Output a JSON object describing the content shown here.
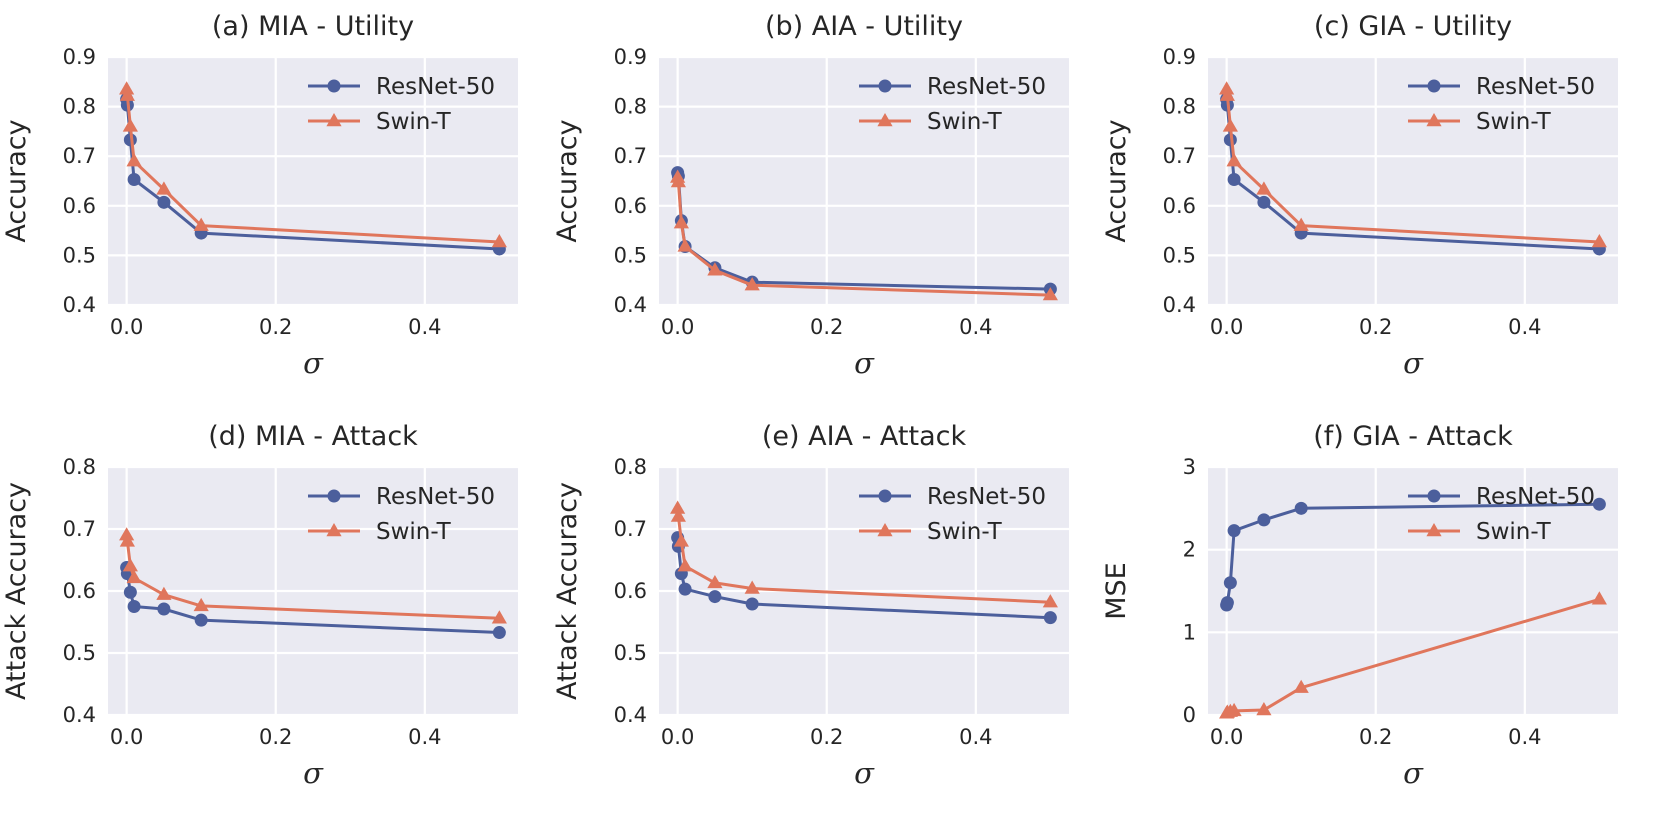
{
  "colors": {
    "resnet": "#4c5f9c",
    "swin": "#e0765c",
    "background": "#eaeaf2",
    "grid": "#ffffff"
  },
  "chart_data": [
    {
      "type": "line",
      "title": "(a) MIA - Utility",
      "xlabel": "σ",
      "ylabel": "Accuracy",
      "xlim": [
        -0.025,
        0.525
      ],
      "ylim": [
        0.4,
        0.9
      ],
      "xticks": [
        0.0,
        0.2,
        0.4
      ],
      "xtick_labels": [
        "0.0",
        "0.2",
        "0.4"
      ],
      "yticks": [
        0.4,
        0.5,
        0.6,
        0.7,
        0.8,
        0.9
      ],
      "ytick_labels": [
        "0.4",
        "0.5",
        "0.6",
        "0.7",
        "0.8",
        "0.9"
      ],
      "legend": "top-right",
      "series": [
        {
          "name": "ResNet-50",
          "marker": "circle",
          "color": "#4c5f9c",
          "x": [
            0.0,
            0.001,
            0.005,
            0.01,
            0.05,
            0.1,
            0.5
          ],
          "y": [
            0.815,
            0.803,
            0.733,
            0.653,
            0.607,
            0.545,
            0.513
          ]
        },
        {
          "name": "Swin-T",
          "marker": "triangle",
          "color": "#e0765c",
          "x": [
            0.0,
            0.001,
            0.005,
            0.01,
            0.05,
            0.1,
            0.5
          ],
          "y": [
            0.835,
            0.822,
            0.76,
            0.69,
            0.633,
            0.56,
            0.527
          ]
        }
      ]
    },
    {
      "type": "line",
      "title": "(b) AIA - Utility",
      "xlabel": "σ",
      "ylabel": "Accuracy",
      "xlim": [
        -0.025,
        0.525
      ],
      "ylim": [
        0.4,
        0.9
      ],
      "xticks": [
        0.0,
        0.2,
        0.4
      ],
      "xtick_labels": [
        "0.0",
        "0.2",
        "0.4"
      ],
      "yticks": [
        0.4,
        0.5,
        0.6,
        0.7,
        0.8,
        0.9
      ],
      "ytick_labels": [
        "0.4",
        "0.5",
        "0.6",
        "0.7",
        "0.8",
        "0.9"
      ],
      "legend": "top-right",
      "series": [
        {
          "name": "ResNet-50",
          "marker": "circle",
          "color": "#4c5f9c",
          "x": [
            0.0,
            0.001,
            0.005,
            0.01,
            0.05,
            0.1,
            0.5
          ],
          "y": [
            0.667,
            0.66,
            0.57,
            0.518,
            0.475,
            0.446,
            0.432
          ]
        },
        {
          "name": "Swin-T",
          "marker": "triangle",
          "color": "#e0765c",
          "x": [
            0.0,
            0.001,
            0.005,
            0.01,
            0.05,
            0.1,
            0.5
          ],
          "y": [
            0.657,
            0.648,
            0.565,
            0.518,
            0.47,
            0.44,
            0.42
          ]
        }
      ]
    },
    {
      "type": "line",
      "title": "(c) GIA - Utility",
      "xlabel": "σ",
      "ylabel": "Accuracy",
      "xlim": [
        -0.025,
        0.525
      ],
      "ylim": [
        0.4,
        0.9
      ],
      "xticks": [
        0.0,
        0.2,
        0.4
      ],
      "xtick_labels": [
        "0.0",
        "0.2",
        "0.4"
      ],
      "yticks": [
        0.4,
        0.5,
        0.6,
        0.7,
        0.8,
        0.9
      ],
      "ytick_labels": [
        "0.4",
        "0.5",
        "0.6",
        "0.7",
        "0.8",
        "0.9"
      ],
      "legend": "top-right",
      "series": [
        {
          "name": "ResNet-50",
          "marker": "circle",
          "color": "#4c5f9c",
          "x": [
            0.0,
            0.001,
            0.005,
            0.01,
            0.05,
            0.1,
            0.5
          ],
          "y": [
            0.815,
            0.803,
            0.733,
            0.653,
            0.607,
            0.545,
            0.513
          ]
        },
        {
          "name": "Swin-T",
          "marker": "triangle",
          "color": "#e0765c",
          "x": [
            0.0,
            0.001,
            0.005,
            0.01,
            0.05,
            0.1,
            0.5
          ],
          "y": [
            0.835,
            0.822,
            0.76,
            0.69,
            0.633,
            0.56,
            0.527
          ]
        }
      ]
    },
    {
      "type": "line",
      "title": "(d) MIA - Attack",
      "xlabel": "σ",
      "ylabel": "Attack Accuracy",
      "xlim": [
        -0.025,
        0.525
      ],
      "ylim": [
        0.4,
        0.8
      ],
      "xticks": [
        0.0,
        0.2,
        0.4
      ],
      "xtick_labels": [
        "0.0",
        "0.2",
        "0.4"
      ],
      "yticks": [
        0.4,
        0.5,
        0.6,
        0.7,
        0.8
      ],
      "ytick_labels": [
        "0.4",
        "0.5",
        "0.6",
        "0.7",
        "0.8"
      ],
      "legend": "top-right",
      "series": [
        {
          "name": "ResNet-50",
          "marker": "circle",
          "color": "#4c5f9c",
          "x": [
            0.0,
            0.001,
            0.005,
            0.01,
            0.05,
            0.1,
            0.5
          ],
          "y": [
            0.638,
            0.628,
            0.598,
            0.575,
            0.571,
            0.553,
            0.533
          ]
        },
        {
          "name": "Swin-T",
          "marker": "triangle",
          "color": "#e0765c",
          "x": [
            0.0,
            0.001,
            0.005,
            0.01,
            0.05,
            0.1,
            0.5
          ],
          "y": [
            0.69,
            0.68,
            0.64,
            0.621,
            0.594,
            0.576,
            0.556
          ]
        }
      ]
    },
    {
      "type": "line",
      "title": "(e) AIA - Attack",
      "xlabel": "σ",
      "ylabel": "Attack Accuracy",
      "xlim": [
        -0.025,
        0.525
      ],
      "ylim": [
        0.4,
        0.8
      ],
      "xticks": [
        0.0,
        0.2,
        0.4
      ],
      "xtick_labels": [
        "0.0",
        "0.2",
        "0.4"
      ],
      "yticks": [
        0.4,
        0.5,
        0.6,
        0.7,
        0.8
      ],
      "ytick_labels": [
        "0.4",
        "0.5",
        "0.6",
        "0.7",
        "0.8"
      ],
      "legend": "top-right",
      "series": [
        {
          "name": "ResNet-50",
          "marker": "circle",
          "color": "#4c5f9c",
          "x": [
            0.0,
            0.001,
            0.005,
            0.01,
            0.05,
            0.1,
            0.5
          ],
          "y": [
            0.686,
            0.672,
            0.628,
            0.603,
            0.591,
            0.579,
            0.557
          ]
        },
        {
          "name": "Swin-T",
          "marker": "triangle",
          "color": "#e0765c",
          "x": [
            0.0,
            0.001,
            0.005,
            0.01,
            0.05,
            0.1,
            0.5
          ],
          "y": [
            0.733,
            0.72,
            0.68,
            0.64,
            0.613,
            0.604,
            0.582
          ]
        }
      ]
    },
    {
      "type": "line",
      "title": "(f) GIA - Attack",
      "xlabel": "σ",
      "ylabel": "MSE",
      "xlim": [
        -0.025,
        0.525
      ],
      "ylim": [
        0,
        3
      ],
      "xticks": [
        0.0,
        0.2,
        0.4
      ],
      "xtick_labels": [
        "0.0",
        "0.2",
        "0.4"
      ],
      "yticks": [
        0,
        1,
        2,
        3
      ],
      "ytick_labels": [
        "0",
        "1",
        "2",
        "3"
      ],
      "legend": "top-right",
      "series": [
        {
          "name": "ResNet-50",
          "marker": "circle",
          "color": "#4c5f9c",
          "x": [
            0.0,
            0.001,
            0.005,
            0.01,
            0.05,
            0.1,
            0.5
          ],
          "y": [
            1.33,
            1.36,
            1.6,
            2.23,
            2.36,
            2.5,
            2.55
          ]
        },
        {
          "name": "Swin-T",
          "marker": "triangle",
          "color": "#e0765c",
          "x": [
            0.0,
            0.001,
            0.005,
            0.01,
            0.05,
            0.1,
            0.5
          ],
          "y": [
            0.02,
            0.03,
            0.04,
            0.05,
            0.06,
            0.33,
            1.4
          ]
        }
      ]
    }
  ]
}
